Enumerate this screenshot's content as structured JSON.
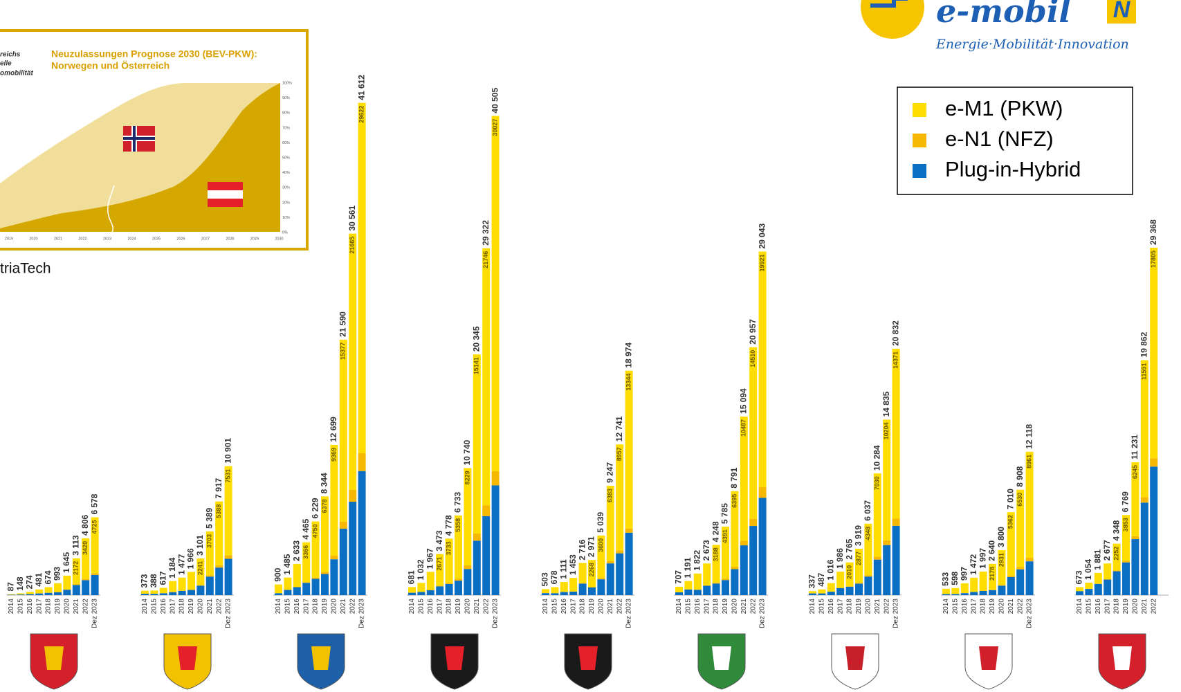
{
  "chart_data": {
    "type": "bar",
    "stacked": true,
    "ylim": [
      0,
      42000
    ],
    "legend": [
      {
        "name": "e-M1 (PKW)",
        "color": "#ffdd00"
      },
      {
        "name": "e-N1 (NFZ)",
        "color": "#f6b800"
      },
      {
        "name": "Plug-in-Hybrid",
        "color": "#0a6fc2"
      }
    ],
    "groups": [
      {
        "categories": [
          "2014",
          "2015",
          "2016",
          "2017",
          "2018",
          "2019",
          "2020",
          "2021",
          "2022",
          "Dez 2023"
        ],
        "totals": [
          "87",
          "148",
          "274",
          "481",
          "674",
          "993",
          "1 645",
          "3 113",
          "4 806",
          "6 578"
        ],
        "series": [
          {
            "values": [
              50,
              92,
              180,
              330,
              466,
              728,
              1151,
              2172,
              3420,
              4725
            ]
          },
          {
            "values": [
              2,
              4,
              6,
              10,
              15,
              25,
              40,
              80,
              120,
              150
            ]
          },
          {
            "values": [
              35,
              52,
              88,
              141,
              193,
              240,
              454,
              861,
              1266,
              1703
            ]
          }
        ]
      },
      {
        "categories": [
          "2014",
          "2015",
          "2016",
          "2017",
          "2018",
          "2019",
          "2020",
          "2021",
          "2022",
          "Dez 2023"
        ],
        "totals": [
          "373",
          "388",
          "617",
          "1 184",
          "1 477",
          "1 966",
          "3 101",
          "5 389",
          "7 917",
          "10 901"
        ],
        "series": [
          {
            "values": [
              250,
              270,
              450,
              919,
              1092,
              1492,
              2241,
              3703,
              5388,
              7531
            ]
          },
          {
            "values": [
              5,
              5,
              10,
              15,
              25,
              40,
              60,
              120,
              200,
              300
            ]
          },
          {
            "values": [
              118,
              113,
              157,
              250,
              360,
              434,
              800,
              1566,
              2329,
              3070
            ]
          }
        ]
      },
      {
        "categories": [
          "2014",
          "2015",
          "2016",
          "2017",
          "2018",
          "2019",
          "2020",
          "2021",
          "2022",
          "Dez 2023"
        ],
        "totals": [
          "900",
          "1 485",
          "2 633",
          "4 465",
          "6 229",
          "8 344",
          "12 699",
          "21 590",
          "30 561",
          "41 612"
        ],
        "series": [
          {
            "values": [
              731,
              1031,
              1932,
              3366,
              4750,
              6378,
              9369,
              15377,
              21665,
              29622
            ]
          },
          {
            "values": [
              10,
              15,
              30,
              60,
              100,
              180,
              300,
              600,
              1000,
              1500
            ]
          },
          {
            "values": [
              159,
              439,
              671,
              1039,
              1379,
              1786,
              3030,
              5613,
              7896,
              10490
            ]
          }
        ]
      },
      {
        "categories": [
          "2014",
          "2015",
          "2016",
          "2017",
          "2018",
          "2019",
          "2020",
          "2021",
          "2022",
          "Dez 2023"
        ],
        "totals": [
          "681",
          "1 032",
          "1 967",
          "3 473",
          "4 778",
          "6 733",
          "10 740",
          "20 345",
          "29 322",
          "40 505"
        ],
        "series": [
          {
            "values": [
              471,
              748,
              1528,
              2671,
              3733,
              5358,
              8229,
              15141,
              21746,
              30027
            ]
          },
          {
            "values": [
              10,
              15,
              30,
              60,
              100,
              150,
              300,
              600,
              900,
              1200
            ]
          },
          {
            "values": [
              200,
              269,
              409,
              742,
              945,
              1225,
              2211,
              4604,
              6676,
              9278
            ]
          }
        ]
      },
      {
        "categories": [
          "2014",
          "2015",
          "2016",
          "2017",
          "2018",
          "2019",
          "2020",
          "2021",
          "2022",
          "Dez 2023"
        ],
        "totals": [
          "503",
          "678",
          "1 111",
          "1 453",
          "2 716",
          "2 971",
          "5 039",
          "9 247",
          "12 741",
          "18 974"
        ],
        "series": [
          {
            "values": [
              330,
              511,
              838,
              1141,
              1700,
              2268,
              3600,
              6383,
              8957,
              13344
            ]
          },
          {
            "values": [
              5,
              8,
              12,
              20,
              40,
              50,
              100,
              180,
              250,
              350
            ]
          },
          {
            "values": [
              168,
              159,
              261,
              292,
              976,
              653,
              1339,
              2684,
              3534,
              5280
            ]
          }
        ]
      },
      {
        "categories": [
          "2014",
          "2015",
          "2016",
          "2017",
          "2018",
          "2019",
          "2020",
          "2021",
          "2022",
          "Dez 2023"
        ],
        "totals": [
          "707",
          "1 191",
          "1 822",
          "2 673",
          "4 248",
          "5 785",
          "8 791",
          "15 094",
          "20 957",
          "29 043"
        ],
        "series": [
          {
            "values": [
              468,
              702,
              1351,
              1839,
              3188,
              4391,
              6395,
              10487,
              14510,
              19921
            ]
          },
          {
            "values": [
              5,
              10,
              20,
              40,
              80,
              120,
              200,
              400,
              600,
              900
            ]
          },
          {
            "values": [
              234,
              479,
              451,
              794,
              980,
              1274,
              2196,
              4207,
              5847,
              8222
            ]
          }
        ]
      },
      {
        "categories": [
          "2014",
          "2015",
          "2016",
          "2017",
          "2018",
          "2019",
          "2020",
          "2021",
          "2022",
          "Dez 2023"
        ],
        "totals": [
          "337",
          "487",
          "1 016",
          "1 986",
          "2 765",
          "3 919",
          "6 037",
          "10 284",
          "14 835",
          "20 832"
        ],
        "series": [
          {
            "values": [
              190,
              340,
              716,
              1369,
              2010,
              2877,
              4348,
              7030,
              10204,
              14371
            ]
          },
          {
            "values": [
              3,
              5,
              10,
              20,
              40,
              70,
              120,
              250,
              400,
              600
            ]
          },
          {
            "values": [
              144,
              142,
              290,
              597,
              715,
              972,
              1569,
              3004,
              4231,
              5861
            ]
          }
        ]
      },
      {
        "categories": [
          "2014",
          "2015",
          "2016",
          "2017",
          "2018",
          "2019",
          "2020",
          "2021",
          "2022",
          "Dez 2023"
        ],
        "totals": [
          "533",
          "598",
          "997",
          "1 472",
          "1 997",
          "2 640",
          "3 800",
          "7 010",
          "8 908",
          "12 118"
        ],
        "series": [
          {
            "values": [
              440,
              496,
              819,
              1191,
              1616,
              2178,
              2931,
              5362,
              6530,
              8961
            ]
          },
          {
            "values": [
              3,
              5,
              10,
              15,
              25,
              40,
              70,
              120,
              200,
              300
            ]
          },
          {
            "values": [
              90,
              97,
              168,
              266,
              356,
              422,
              799,
              1528,
              2178,
              2857
            ]
          }
        ]
      },
      {
        "categories": [
          "2014",
          "2015",
          "2016",
          "2017",
          "2018",
          "2019",
          "2020",
          "2021",
          "2022"
        ],
        "totals": [
          "673",
          "1 054",
          "1 881",
          "2 677",
          "4 348",
          "6 769",
          "11 231",
          "19 862",
          "29 368"
        ],
        "series": [
          {
            "values": [
              330,
              521,
              910,
              1324,
              2252,
              3853,
              6245,
              11591,
              17805
            ]
          },
          {
            "values": [
              5,
              10,
              20,
              40,
              80,
              150,
              250,
              450,
              700
            ]
          },
          {
            "values": [
              338,
              523,
              951,
              1313,
              2016,
              2766,
              4736,
              7821,
              10863
            ]
          }
        ]
      }
    ]
  },
  "logo": {
    "name": "e-mobil",
    "letter": "N",
    "tagline": "Energie·Mobilität·Innovation"
  },
  "inset": {
    "title": [
      "Neuzulassungen Prognose 2030 (BEV-PKW):",
      "Norwegen und Österreich"
    ],
    "side_text": [
      "reichs",
      "elle",
      "omobilität"
    ],
    "years": [
      "2019",
      "2020",
      "2021",
      "2022",
      "2023",
      "2024",
      "2025",
      "2026",
      "2027",
      "2028",
      "2029",
      "2030"
    ],
    "percents": [
      "0%",
      "10%",
      "20%",
      "30%",
      "40%",
      "50%",
      "60%",
      "70%",
      "80%",
      "90%",
      "100%"
    ],
    "caption": "triaTech"
  }
}
